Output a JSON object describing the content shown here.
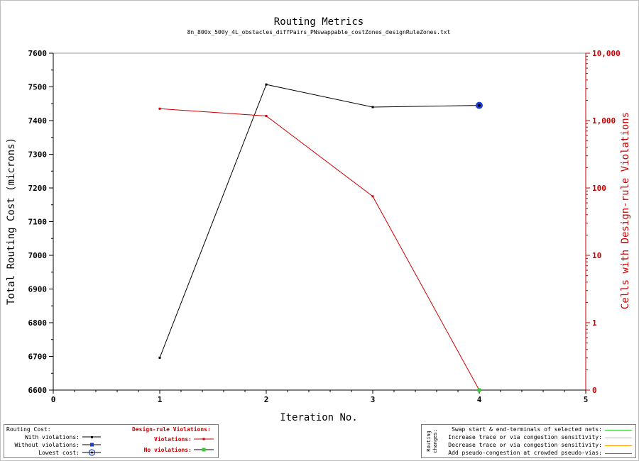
{
  "chart_data": {
    "type": "line",
    "title": "Routing Metrics",
    "subtitle": "8n_800x_500y_4L_obstacles_diffPairs_PNswappable_costZones_designRuleZones.txt",
    "xlabel": "Iteration No.",
    "ylabel": "Total Routing Cost (microns)",
    "y2label": "Cells with Design-rule Violations",
    "xlim": [
      0,
      5
    ],
    "ylim": [
      6600,
      7600
    ],
    "y2_scale": "log",
    "x_ticks": [
      "0",
      "1",
      "2",
      "3",
      "4",
      "5"
    ],
    "y_ticks": [
      "6600",
      "6700",
      "6800",
      "6900",
      "7000",
      "7100",
      "7200",
      "7300",
      "7400",
      "7500",
      "7600"
    ],
    "y2_ticks": [
      "0",
      "1",
      "10",
      "100",
      "1,000",
      "10,000"
    ],
    "grid": false,
    "series": [
      {
        "name": "With violations:",
        "axis": "left",
        "color": "#000000",
        "x": [
          1,
          2,
          3,
          4
        ],
        "y": [
          6696,
          7507,
          7440,
          7445
        ]
      },
      {
        "name": "Violations:",
        "axis": "right",
        "color": "#cc0000",
        "x": [
          1,
          2,
          3,
          4
        ],
        "y": [
          1500,
          1170,
          75,
          0
        ]
      }
    ],
    "lowest_cost_point": {
      "x": 4,
      "y": 7445
    },
    "no_violation_point": {
      "x": 4,
      "y": 0
    }
  },
  "legend_left": {
    "routing_cost_header": "Routing Cost:",
    "with_violations": "With violations:",
    "without_violations": "Without violations:",
    "lowest_cost": "Lowest cost:",
    "drv_header": "Design-rule Violations:",
    "violations": "Violations:",
    "no_violations": "No violations:"
  },
  "legend_right": {
    "side_label_1": "Routing",
    "side_label_2": "changes:",
    "items": [
      {
        "label": "Swap start & end-terminals of selected nets:",
        "color": "#33cc33"
      },
      {
        "label": "Increase trace or via congestion sensitivity:",
        "color": "#66ccff"
      },
      {
        "label": "Decrease trace or via congestion sensitivity:",
        "color": "#ff9900"
      },
      {
        "label": "Add pseudo-congestion at crowded pseudo-vias:",
        "color": "#ff3333"
      }
    ]
  }
}
